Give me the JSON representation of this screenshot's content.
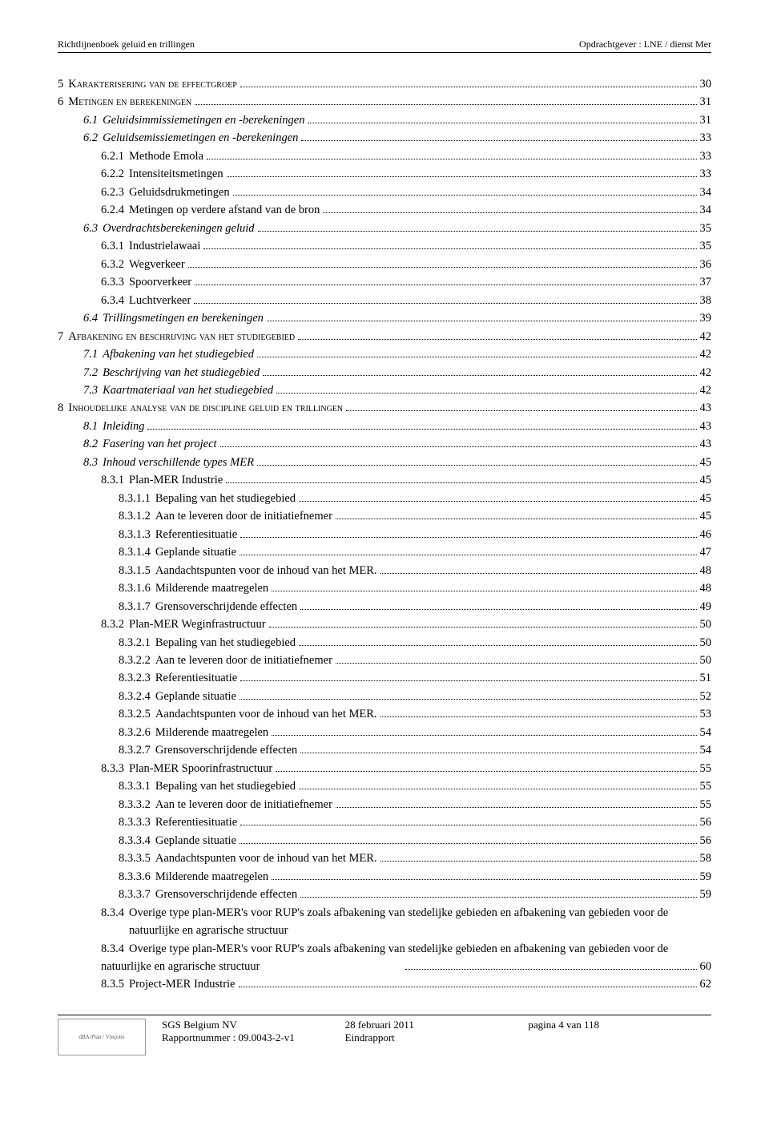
{
  "header": {
    "left": "Richtlijnenboek geluid en trillingen",
    "right": "Opdrachtgever : LNE / dienst Mer"
  },
  "toc": [
    {
      "num": "5",
      "title": "Karakterisering van de effectgroep",
      "page": "30",
      "level": 0,
      "style": "smallcaps"
    },
    {
      "num": "6",
      "title": "Metingen en berekeningen",
      "page": "31",
      "level": 0,
      "style": "smallcaps"
    },
    {
      "num": "6.1",
      "title": "Geluidsimmissiemetingen en -berekeningen",
      "page": "31",
      "level": 1,
      "style": "italic"
    },
    {
      "num": "6.2",
      "title": "Geluidsemissiemetingen en -berekeningen",
      "page": "33",
      "level": 1,
      "style": "italic"
    },
    {
      "num": "6.2.1",
      "title": "Methode Emola",
      "page": "33",
      "level": 2
    },
    {
      "num": "6.2.2",
      "title": "Intensiteitsmetingen",
      "page": "33",
      "level": 2
    },
    {
      "num": "6.2.3",
      "title": "Geluidsdrukmetingen",
      "page": "34",
      "level": 2
    },
    {
      "num": "6.2.4",
      "title": "Metingen op verdere afstand van de bron",
      "page": "34",
      "level": 2
    },
    {
      "num": "6.3",
      "title": "Overdrachtsberekeningen geluid",
      "page": "35",
      "level": 1,
      "style": "italic"
    },
    {
      "num": "6.3.1",
      "title": "Industrielawaai",
      "page": "35",
      "level": 2
    },
    {
      "num": "6.3.2",
      "title": "Wegverkeer",
      "page": "36",
      "level": 2
    },
    {
      "num": "6.3.3",
      "title": "Spoorverkeer",
      "page": "37",
      "level": 2
    },
    {
      "num": "6.3.4",
      "title": "Luchtverkeer",
      "page": "38",
      "level": 2
    },
    {
      "num": "6.4",
      "title": "Trillingsmetingen en berekeningen",
      "page": "39",
      "level": 1,
      "style": "italic"
    },
    {
      "num": "7",
      "title": "Afbakening en beschrijving van het studiegebied",
      "page": "42",
      "level": 0,
      "style": "smallcaps"
    },
    {
      "num": "7.1",
      "title": "Afbakening van het studiegebied",
      "page": "42",
      "level": 1,
      "style": "italic"
    },
    {
      "num": "7.2",
      "title": "Beschrijving van het studiegebied",
      "page": "42",
      "level": 1,
      "style": "italic"
    },
    {
      "num": "7.3",
      "title": "Kaartmateriaal van het studiegebied",
      "page": "42",
      "level": 1,
      "style": "italic"
    },
    {
      "num": "8",
      "title": "Inhoudelijke analyse van de discipline geluid en trillingen",
      "page": "43",
      "level": 0,
      "style": "smallcaps"
    },
    {
      "num": "8.1",
      "title": "Inleiding",
      "page": "43",
      "level": 1,
      "style": "italic"
    },
    {
      "num": "8.2",
      "title": "Fasering van het project",
      "page": "43",
      "level": 1,
      "style": "italic"
    },
    {
      "num": "8.3",
      "title": "Inhoud verschillende types MER",
      "page": "45",
      "level": 1,
      "style": "italic"
    },
    {
      "num": "8.3.1",
      "title": "Plan-MER Industrie",
      "page": "45",
      "level": 2
    },
    {
      "num": "8.3.1.1",
      "title": "Bepaling van het studiegebied",
      "page": "45",
      "level": 3
    },
    {
      "num": "8.3.1.2",
      "title": "Aan te leveren door de initiatiefnemer",
      "page": "45",
      "level": 3
    },
    {
      "num": "8.3.1.3",
      "title": "Referentiesituatie",
      "page": "46",
      "level": 3
    },
    {
      "num": "8.3.1.4",
      "title": "Geplande situatie",
      "page": "47",
      "level": 3
    },
    {
      "num": "8.3.1.5",
      "title": "Aandachtspunten voor de inhoud van het MER.",
      "page": "48",
      "level": 3
    },
    {
      "num": "8.3.1.6",
      "title": "Milderende maatregelen",
      "page": "48",
      "level": 3
    },
    {
      "num": "8.3.1.7",
      "title": "Grensoverschrijdende effecten",
      "page": "49",
      "level": 3
    },
    {
      "num": "8.3.2",
      "title": "Plan-MER Weginfrastructuur",
      "page": "50",
      "level": 2
    },
    {
      "num": "8.3.2.1",
      "title": "Bepaling van het studiegebied",
      "page": "50",
      "level": 3
    },
    {
      "num": "8.3.2.2",
      "title": "Aan te leveren door de initiatiefnemer",
      "page": "50",
      "level": 3
    },
    {
      "num": "8.3.2.3",
      "title": "Referentiesituatie",
      "page": "51",
      "level": 3
    },
    {
      "num": "8.3.2.4",
      "title": "Geplande situatie",
      "page": "52",
      "level": 3
    },
    {
      "num": "8.3.2.5",
      "title": "Aandachtspunten voor de inhoud van het MER.",
      "page": "53",
      "level": 3
    },
    {
      "num": "8.3.2.6",
      "title": "Milderende maatregelen",
      "page": "54",
      "level": 3
    },
    {
      "num": "8.3.2.7",
      "title": "Grensoverschrijdende effecten",
      "page": "54",
      "level": 3
    },
    {
      "num": "8.3.3",
      "title": "Plan-MER Spoorinfrastructuur",
      "page": "55",
      "level": 2
    },
    {
      "num": "8.3.3.1",
      "title": "Bepaling van het studiegebied",
      "page": "55",
      "level": 3
    },
    {
      "num": "8.3.3.2",
      "title": "Aan te leveren door de initiatiefnemer",
      "page": "55",
      "level": 3
    },
    {
      "num": "8.3.3.3",
      "title": "Referentiesituatie",
      "page": "56",
      "level": 3
    },
    {
      "num": "8.3.3.4",
      "title": "Geplande situatie",
      "page": "56",
      "level": 3
    },
    {
      "num": "8.3.3.5",
      "title": "Aandachtspunten voor de inhoud van het MER.",
      "page": "58",
      "level": 3
    },
    {
      "num": "8.3.3.6",
      "title": "Milderende maatregelen",
      "page": "59",
      "level": 3
    },
    {
      "num": "8.3.3.7",
      "title": "Grensoverschrijdende effecten",
      "page": "59",
      "level": 3
    },
    {
      "num": "8.3.4",
      "title": "Overige type plan-MER's voor RUP's zoals afbakening van stedelijke gebieden en afbakening van gebieden voor de natuurlijke en agrarische structuur",
      "page": "60",
      "level": 2,
      "wrap": true
    },
    {
      "num": "8.3.5",
      "title": "Project-MER Industrie",
      "page": "62",
      "level": 2
    }
  ],
  "footer": {
    "logo_text": "dBA-Plan / Vinçotte",
    "company": "SGS Belgium NV",
    "report_label": "Rapportnummer : 09.0043-2-v1",
    "date": "28 februari 2011",
    "doc_type": "Eindrapport",
    "page_info": "pagina 4 van 118"
  }
}
